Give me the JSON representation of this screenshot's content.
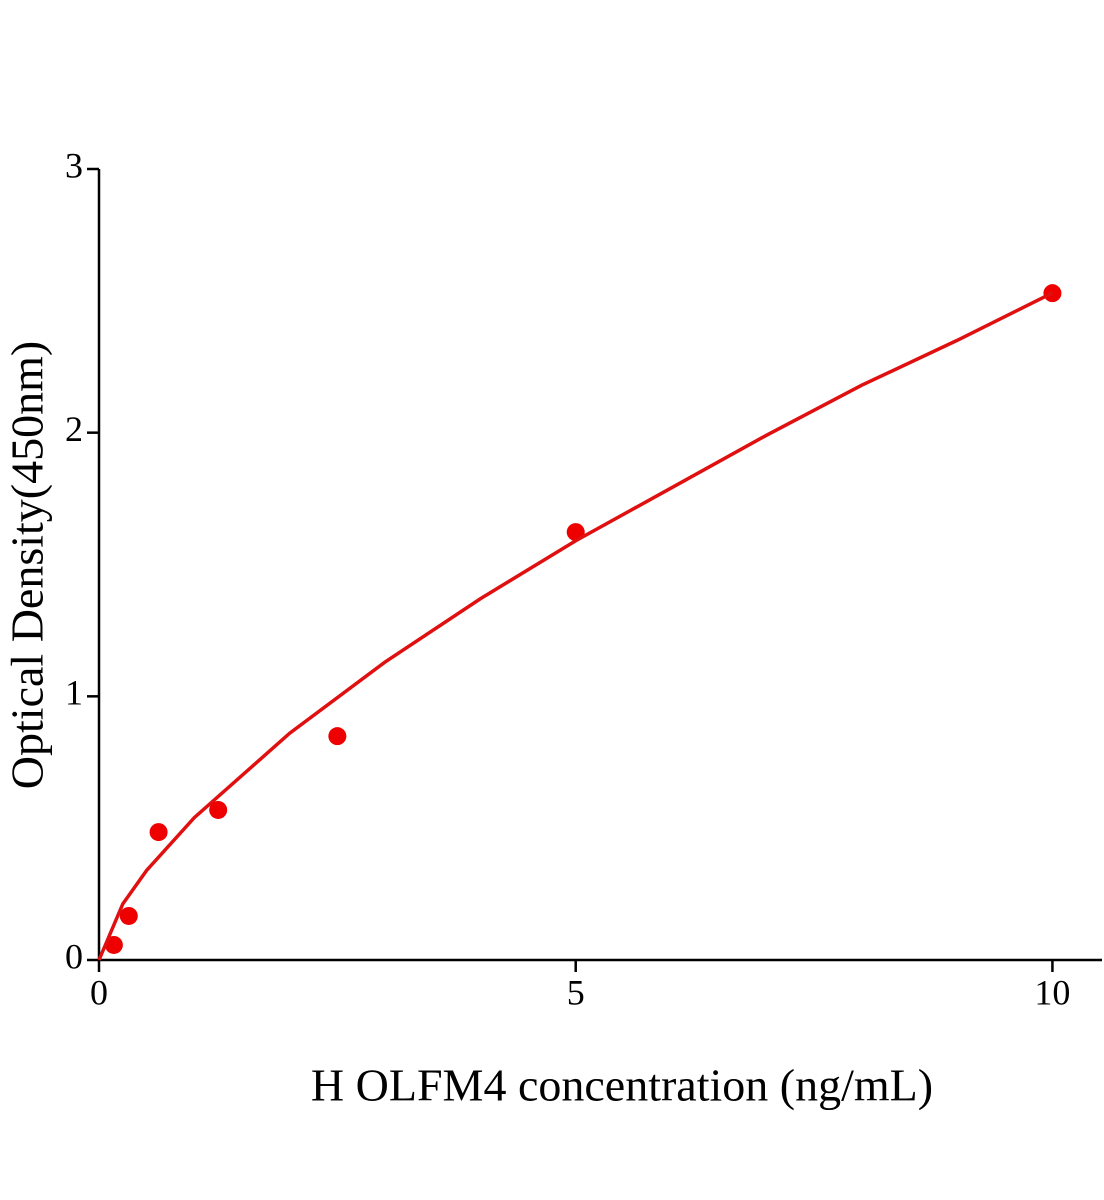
{
  "chart_data": {
    "type": "scatter",
    "x_label": "H OLFM4 concentration (ng/mL)",
    "y_label": "Optical Density(450nm)",
    "xlim": [
      0,
      10.52
    ],
    "xticks": [
      0,
      5,
      10
    ],
    "ylim": [
      0,
      3
    ],
    "yticks": [
      0,
      1,
      2,
      3
    ],
    "series": [
      {
        "mode": "markers",
        "color": "#ee0000",
        "x": [
          0.156,
          0.3125,
          0.625,
          1.25,
          2.5,
          5,
          10
        ],
        "values": [
          0.057,
          0.167,
          0.485,
          0.569,
          0.849,
          1.623,
          2.529
        ]
      },
      {
        "mode": "line",
        "color": "#e01010",
        "x": [
          0,
          0.25,
          0.5,
          1,
          2,
          3,
          4,
          5,
          6,
          7,
          8,
          9,
          10
        ],
        "values": [
          0,
          0.213,
          0.34,
          0.54,
          0.86,
          1.13,
          1.37,
          1.59,
          1.79,
          1.99,
          2.18,
          2.35,
          2.53
        ]
      }
    ]
  }
}
